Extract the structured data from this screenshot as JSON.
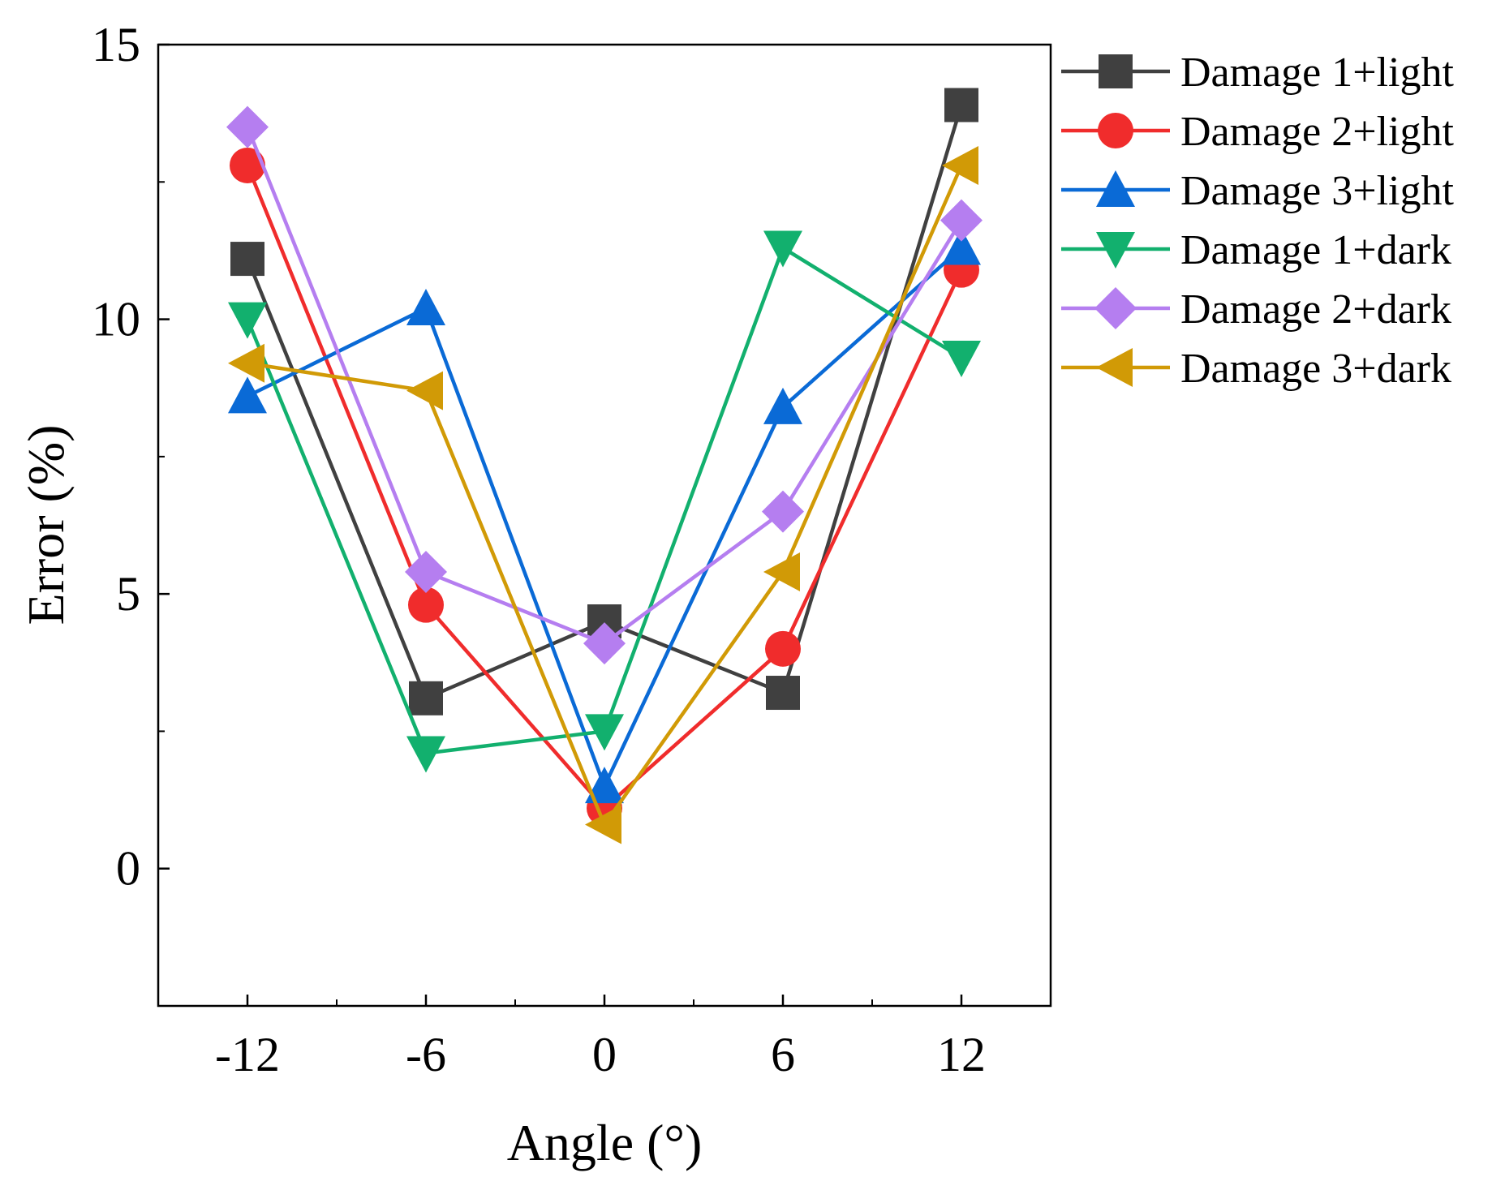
{
  "chart_data": {
    "type": "line",
    "title": "",
    "xlabel": "Angle (°)",
    "ylabel": "Error (%)",
    "xlim": [
      -15,
      15
    ],
    "ylim": [
      -2.5,
      15
    ],
    "x": [
      -12,
      -6,
      0,
      6,
      12
    ],
    "x_ticks": [
      "-12",
      "-6",
      "0",
      "6",
      "12"
    ],
    "y_ticks": [
      "0",
      "5",
      "10",
      "15"
    ],
    "y_tick_values": [
      0,
      5,
      10,
      15
    ],
    "legend_position": "top-right, outside plot",
    "series": [
      {
        "name": "Damage 1+light",
        "color": "#404040",
        "marker": "square",
        "values": [
          11.1,
          3.1,
          4.5,
          3.2,
          13.9
        ]
      },
      {
        "name": "Damage 2+light",
        "color": "#f02c2c",
        "marker": "circle",
        "values": [
          12.8,
          4.8,
          1.1,
          4.0,
          10.9
        ]
      },
      {
        "name": "Damage 3+light",
        "color": "#0a6ad6",
        "marker": "triangle-up",
        "values": [
          8.6,
          10.2,
          1.5,
          8.4,
          11.3
        ]
      },
      {
        "name": "Damage 1+dark",
        "color": "#12b06e",
        "marker": "triangle-down",
        "values": [
          10.0,
          2.1,
          2.5,
          11.3,
          9.3
        ]
      },
      {
        "name": "Damage 2+dark",
        "color": "#b57ef0",
        "marker": "diamond",
        "values": [
          13.5,
          5.4,
          4.1,
          6.5,
          11.8
        ]
      },
      {
        "name": "Damage 3+dark",
        "color": "#d19a06",
        "marker": "triangle-left",
        "values": [
          9.2,
          8.7,
          0.8,
          5.4,
          12.8
        ]
      }
    ]
  }
}
